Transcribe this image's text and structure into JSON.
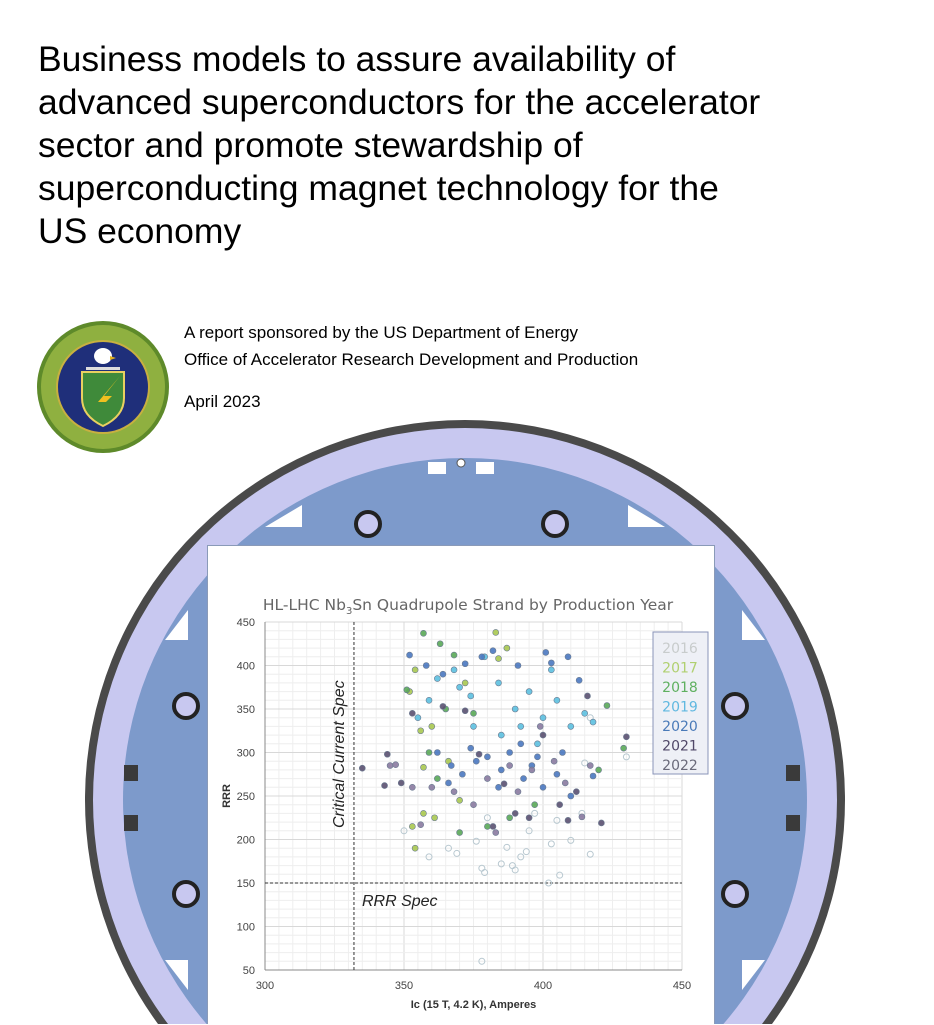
{
  "title_lines": [
    "Business models to assure availability of",
    "advanced superconductors for the accelerator",
    "sector and promote stewardship of",
    "superconducting magnet technology for the",
    "US economy"
  ],
  "sponsor": {
    "line1": "A report sponsored by the US Department of Energy",
    "line2": "Office of Accelerator Research Development and Production",
    "date": "April 2023"
  },
  "seal": {
    "text": "DEPARTMENT OF ENERGY · UNITED STATES OF AMERICA"
  },
  "chart_data": {
    "type": "scatter",
    "title_prefix": "HL-LHC Nb",
    "title_sub": "3",
    "title_suffix": "Sn Quadrupole Strand by Production Year",
    "xlabel": "Ic (15 T, 4.2 K), Amperes",
    "ylabel": "RRR",
    "xlim": [
      300,
      450
    ],
    "ylim": [
      50,
      450
    ],
    "xticks": [
      300,
      350,
      400,
      450
    ],
    "yticks": [
      50,
      100,
      150,
      200,
      250,
      300,
      350,
      400,
      450
    ],
    "grid": true,
    "legend_position": "top-right",
    "annotations": {
      "ic_spec": {
        "label": "Critical Current Spec",
        "x": 332
      },
      "rrr_spec": {
        "label": "RRR Spec",
        "y": 150
      }
    },
    "series": [
      {
        "name": "2016",
        "color": "#b8c8d0",
        "filled": false,
        "points": [
          [
            350,
            210
          ],
          [
            359,
            180
          ],
          [
            366,
            190
          ],
          [
            369,
            184
          ],
          [
            376,
            198
          ],
          [
            378,
            167
          ],
          [
            379,
            162
          ],
          [
            385,
            172
          ],
          [
            387,
            191
          ],
          [
            389,
            170
          ],
          [
            390,
            165
          ],
          [
            392,
            180
          ],
          [
            394,
            186
          ],
          [
            402,
            150
          ],
          [
            406,
            159
          ],
          [
            410,
            199
          ],
          [
            417,
            183
          ],
          [
            403,
            195
          ],
          [
            378,
            60
          ],
          [
            397,
            230
          ],
          [
            405,
            222
          ],
          [
            414,
            230
          ],
          [
            415,
            288
          ],
          [
            417,
            340
          ],
          [
            430,
            295
          ],
          [
            380,
            225
          ],
          [
            395,
            210
          ]
        ]
      },
      {
        "name": "2017",
        "color": "#a8c850",
        "filled": true,
        "points": [
          [
            352,
            370
          ],
          [
            354,
            395
          ],
          [
            353,
            215
          ],
          [
            354,
            190
          ],
          [
            357,
            230
          ],
          [
            361,
            225
          ],
          [
            383,
            438
          ],
          [
            384,
            408
          ],
          [
            387,
            420
          ],
          [
            356,
            325
          ],
          [
            360,
            330
          ],
          [
            366,
            290
          ],
          [
            370,
            245
          ],
          [
            372,
            380
          ],
          [
            357,
            283
          ]
        ]
      },
      {
        "name": "2018",
        "color": "#5aa858",
        "filled": true,
        "points": [
          [
            357,
            437
          ],
          [
            363,
            425
          ],
          [
            368,
            412
          ],
          [
            351,
            372
          ],
          [
            359,
            300
          ],
          [
            362,
            270
          ],
          [
            370,
            208
          ],
          [
            375,
            345
          ],
          [
            380,
            215
          ],
          [
            388,
            225
          ],
          [
            397,
            240
          ],
          [
            423,
            354
          ],
          [
            429,
            305
          ],
          [
            420,
            280
          ],
          [
            365,
            350
          ]
        ]
      },
      {
        "name": "2019",
        "color": "#5cc0e0",
        "filled": true,
        "points": [
          [
            355,
            340
          ],
          [
            359,
            360
          ],
          [
            362,
            385
          ],
          [
            368,
            395
          ],
          [
            374,
            365
          ],
          [
            379,
            410
          ],
          [
            384,
            380
          ],
          [
            390,
            350
          ],
          [
            395,
            370
          ],
          [
            400,
            340
          ],
          [
            405,
            360
          ],
          [
            410,
            330
          ],
          [
            415,
            345
          ],
          [
            418,
            335
          ],
          [
            385,
            320
          ],
          [
            392,
            330
          ],
          [
            398,
            310
          ],
          [
            375,
            330
          ],
          [
            370,
            375
          ],
          [
            403,
            395
          ]
        ]
      },
      {
        "name": "2020",
        "color": "#4a78c0",
        "filled": true,
        "points": [
          [
            352,
            412
          ],
          [
            358,
            400
          ],
          [
            364,
            390
          ],
          [
            372,
            402
          ],
          [
            378,
            410
          ],
          [
            382,
            417
          ],
          [
            391,
            400
          ],
          [
            401,
            415
          ],
          [
            403,
            403
          ],
          [
            409,
            410
          ],
          [
            413,
            383
          ],
          [
            362,
            300
          ],
          [
            367,
            285
          ],
          [
            371,
            275
          ],
          [
            376,
            290
          ],
          [
            380,
            295
          ],
          [
            385,
            280
          ],
          [
            388,
            300
          ],
          [
            393,
            270
          ],
          [
            396,
            285
          ],
          [
            400,
            260
          ],
          [
            405,
            275
          ],
          [
            410,
            250
          ],
          [
            366,
            265
          ],
          [
            374,
            305
          ],
          [
            384,
            260
          ],
          [
            392,
            310
          ],
          [
            398,
            295
          ],
          [
            407,
            300
          ],
          [
            418,
            273
          ]
        ]
      },
      {
        "name": "2021",
        "color": "#5a5070",
        "filled": true,
        "points": [
          [
            335,
            282
          ],
          [
            343,
            262
          ],
          [
            344,
            298
          ],
          [
            349,
            265
          ],
          [
            353,
            345
          ],
          [
            364,
            353
          ],
          [
            372,
            348
          ],
          [
            377,
            298
          ],
          [
            386,
            264
          ],
          [
            395,
            225
          ],
          [
            409,
            222
          ],
          [
            416,
            365
          ],
          [
            430,
            318
          ],
          [
            421,
            219
          ],
          [
            390,
            230
          ],
          [
            382,
            215
          ],
          [
            400,
            320
          ],
          [
            406,
            240
          ],
          [
            412,
            255
          ]
        ]
      },
      {
        "name": "2022",
        "color": "#8a7aa0",
        "filled": true,
        "points": [
          [
            345,
            285
          ],
          [
            347,
            286
          ],
          [
            353,
            260
          ],
          [
            356,
            217
          ],
          [
            360,
            260
          ],
          [
            368,
            255
          ],
          [
            375,
            240
          ],
          [
            383,
            208
          ],
          [
            391,
            255
          ],
          [
            399,
            330
          ],
          [
            404,
            290
          ],
          [
            408,
            265
          ],
          [
            414,
            226
          ],
          [
            417,
            285
          ],
          [
            396,
            280
          ],
          [
            388,
            285
          ],
          [
            380,
            270
          ]
        ]
      }
    ],
    "legend_colors": [
      "#c8cccc",
      "#b0d070",
      "#5fb060",
      "#60b8e0",
      "#4a7ab8",
      "#504868",
      "#6a6a7a"
    ]
  }
}
